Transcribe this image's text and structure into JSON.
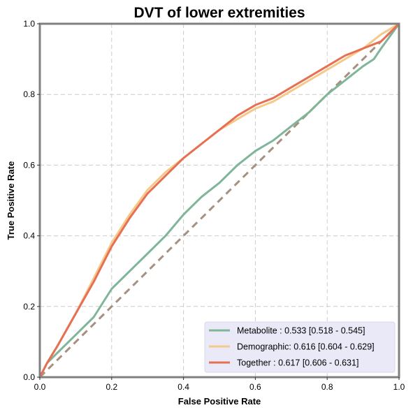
{
  "chart_data": {
    "type": "line",
    "title": "DVT of lower extremities",
    "xlabel": "False Positive Rate",
    "ylabel": "True Positive Rate",
    "xlim": [
      0,
      1
    ],
    "ylim": [
      0,
      1
    ],
    "xticks": [
      "0.0",
      "0.2",
      "0.4",
      "0.6",
      "0.8",
      "1.0"
    ],
    "yticks": [
      "0.0",
      "0.2",
      "0.4",
      "0.6",
      "0.8",
      "1.0"
    ],
    "grid": true,
    "legend_position": "lower-right",
    "series": [
      {
        "name": "Metabolite",
        "label": "Metabolite     : 0.533 [0.518 - 0.545]",
        "color": "#7fb598",
        "x": [
          0,
          0.02,
          0.05,
          0.1,
          0.15,
          0.2,
          0.25,
          0.3,
          0.35,
          0.4,
          0.45,
          0.5,
          0.55,
          0.6,
          0.65,
          0.7,
          0.75,
          0.8,
          0.85,
          0.9,
          0.93,
          0.95,
          1.0
        ],
        "y": [
          0,
          0.04,
          0.07,
          0.12,
          0.17,
          0.25,
          0.3,
          0.35,
          0.4,
          0.46,
          0.51,
          0.55,
          0.6,
          0.64,
          0.67,
          0.71,
          0.75,
          0.8,
          0.84,
          0.88,
          0.9,
          0.93,
          1.0
        ]
      },
      {
        "name": "Demographic",
        "label": "Demographic: 0.616 [0.604 - 0.629]",
        "color": "#f5c98a",
        "x": [
          0,
          0.02,
          0.05,
          0.1,
          0.15,
          0.2,
          0.25,
          0.3,
          0.35,
          0.4,
          0.45,
          0.5,
          0.55,
          0.6,
          0.65,
          0.7,
          0.75,
          0.8,
          0.85,
          0.9,
          0.95,
          1.0
        ],
        "y": [
          0,
          0.04,
          0.09,
          0.18,
          0.28,
          0.38,
          0.46,
          0.53,
          0.58,
          0.62,
          0.66,
          0.7,
          0.73,
          0.76,
          0.78,
          0.81,
          0.84,
          0.87,
          0.9,
          0.93,
          0.97,
          1.0
        ]
      },
      {
        "name": "Together",
        "label": "Together       : 0.617 [0.606 - 0.631]",
        "color": "#e67054",
        "x": [
          0,
          0.02,
          0.05,
          0.1,
          0.15,
          0.2,
          0.25,
          0.3,
          0.35,
          0.4,
          0.45,
          0.5,
          0.55,
          0.6,
          0.65,
          0.7,
          0.75,
          0.8,
          0.85,
          0.9,
          0.95,
          1.0
        ],
        "y": [
          0,
          0.04,
          0.09,
          0.18,
          0.27,
          0.37,
          0.45,
          0.52,
          0.57,
          0.62,
          0.66,
          0.7,
          0.74,
          0.77,
          0.79,
          0.82,
          0.85,
          0.88,
          0.91,
          0.93,
          0.95,
          1.0
        ]
      },
      {
        "name": "",
        "color": "#a89080",
        "dashed": true,
        "x": [
          0,
          1
        ],
        "y": [
          0,
          1
        ]
      }
    ]
  }
}
